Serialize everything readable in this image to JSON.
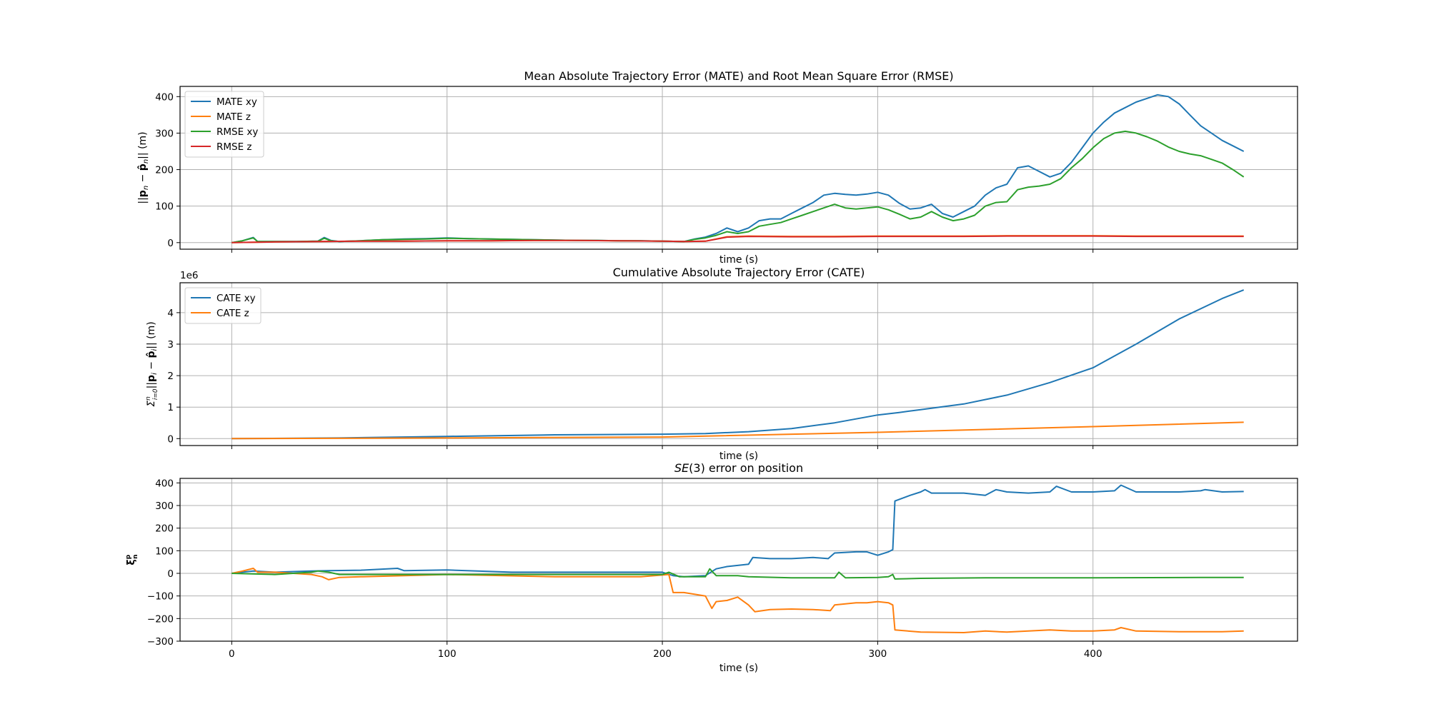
{
  "colors": {
    "blue": "#1f77b4",
    "orange": "#ff7f0e",
    "green": "#2ca02c",
    "red": "#d62728",
    "grid": "#b0b0b0"
  },
  "chart_data": [
    {
      "type": "line",
      "title": "Mean Absolute Trajectory Error (MATE) and Root Mean Square Error (RMSE)",
      "xlabel": "time (s)",
      "ylabel": "||p_n − p̂_n|| (m)",
      "xlim": [
        -24,
        495
      ],
      "ylim": [
        -18,
        428
      ],
      "xticks": [
        0,
        100,
        200,
        300,
        400
      ],
      "yticks": [
        0,
        100,
        200,
        300,
        400
      ],
      "grid": true,
      "legend": "top-left",
      "series": [
        {
          "name": "MATE xy",
          "color": "#1f77b4",
          "x": [
            0,
            5,
            10,
            12,
            20,
            30,
            40,
            43,
            46,
            50,
            60,
            70,
            80,
            90,
            100,
            110,
            120,
            130,
            140,
            150,
            160,
            170,
            180,
            190,
            200,
            210,
            215,
            220,
            225,
            230,
            235,
            240,
            245,
            250,
            255,
            260,
            265,
            270,
            275,
            280,
            285,
            290,
            295,
            300,
            305,
            310,
            315,
            320,
            325,
            330,
            335,
            340,
            345,
            350,
            355,
            360,
            365,
            370,
            375,
            380,
            385,
            390,
            395,
            400,
            405,
            410,
            415,
            420,
            425,
            430,
            435,
            440,
            445,
            450,
            455,
            460,
            465,
            470
          ],
          "y": [
            0,
            5,
            14,
            3,
            3,
            3,
            4,
            14,
            6,
            3,
            5,
            8,
            10,
            11,
            13,
            11,
            10,
            9,
            8,
            7,
            6,
            6,
            5,
            5,
            4,
            3,
            10,
            15,
            25,
            40,
            30,
            40,
            60,
            65,
            65,
            80,
            95,
            110,
            130,
            135,
            132,
            130,
            133,
            138,
            130,
            108,
            92,
            95,
            105,
            80,
            70,
            85,
            100,
            130,
            150,
            160,
            205,
            210,
            195,
            180,
            190,
            220,
            260,
            300,
            330,
            355,
            370,
            385,
            395,
            405,
            400,
            380,
            350,
            320,
            300,
            280,
            265,
            250
          ]
        },
        {
          "name": "MATE z",
          "color": "#ff7f0e",
          "x": [
            0,
            20,
            40,
            60,
            80,
            100,
            120,
            140,
            160,
            180,
            200,
            210,
            220,
            230,
            240,
            260,
            280,
            300,
            320,
            340,
            360,
            380,
            400,
            420,
            440,
            460,
            470
          ],
          "y": [
            0,
            2,
            3,
            4,
            4,
            5,
            5,
            6,
            6,
            5,
            4,
            3,
            4,
            16,
            18,
            17,
            17,
            18,
            18,
            18,
            19,
            19,
            19,
            18,
            18,
            18,
            18
          ]
        },
        {
          "name": "RMSE xy",
          "color": "#2ca02c",
          "x": [
            0,
            5,
            10,
            12,
            20,
            30,
            40,
            43,
            46,
            50,
            60,
            70,
            80,
            90,
            100,
            110,
            120,
            130,
            140,
            150,
            160,
            170,
            180,
            190,
            200,
            210,
            215,
            220,
            225,
            230,
            235,
            240,
            245,
            250,
            255,
            260,
            265,
            270,
            275,
            280,
            285,
            290,
            295,
            300,
            305,
            310,
            315,
            320,
            325,
            330,
            335,
            340,
            345,
            350,
            355,
            360,
            365,
            370,
            375,
            380,
            385,
            390,
            395,
            400,
            405,
            410,
            415,
            420,
            425,
            430,
            435,
            440,
            445,
            450,
            455,
            460,
            465,
            470
          ],
          "y": [
            0,
            5,
            13,
            3,
            3,
            3,
            4,
            12,
            5,
            3,
            5,
            8,
            9,
            10,
            12,
            11,
            10,
            9,
            8,
            7,
            6,
            6,
            5,
            5,
            4,
            3,
            9,
            13,
            20,
            30,
            25,
            30,
            45,
            50,
            55,
            65,
            75,
            85,
            95,
            105,
            95,
            92,
            95,
            98,
            90,
            78,
            65,
            70,
            85,
            70,
            60,
            65,
            75,
            100,
            110,
            112,
            145,
            152,
            155,
            160,
            175,
            205,
            230,
            260,
            285,
            300,
            305,
            300,
            290,
            278,
            262,
            250,
            243,
            238,
            228,
            218,
            200,
            180
          ]
        },
        {
          "name": "RMSE z",
          "color": "#d62728",
          "x": [
            0,
            20,
            40,
            60,
            80,
            100,
            120,
            140,
            160,
            180,
            200,
            210,
            220,
            230,
            240,
            260,
            280,
            300,
            320,
            340,
            360,
            380,
            400,
            420,
            440,
            460,
            470
          ],
          "y": [
            0,
            2,
            3,
            4,
            4,
            5,
            5,
            6,
            6,
            5,
            4,
            3,
            4,
            15,
            17,
            16,
            16,
            17,
            17,
            17,
            18,
            18,
            18,
            17,
            17,
            17,
            17
          ]
        }
      ]
    },
    {
      "type": "line",
      "title": "Cumulative Absolute Trajectory Error (CATE)",
      "xlabel": "time (s)",
      "ylabel": "Σ_{i=0}^{n} ||p_i − p̂_i|| (m)",
      "scale_label": "1e6",
      "xlim": [
        -24,
        495
      ],
      "ylim": [
        -0.22,
        4.95
      ],
      "xticks": [
        0,
        100,
        200,
        300,
        400
      ],
      "yticks": [
        0,
        1,
        2,
        3,
        4
      ],
      "grid": true,
      "legend": "top-left",
      "series": [
        {
          "name": "CATE xy",
          "color": "#1f77b4",
          "x": [
            0,
            50,
            100,
            150,
            200,
            220,
            240,
            260,
            280,
            300,
            310,
            320,
            340,
            360,
            380,
            400,
            420,
            440,
            460,
            470
          ],
          "y": [
            0,
            0.02,
            0.07,
            0.12,
            0.14,
            0.16,
            0.22,
            0.32,
            0.5,
            0.75,
            0.83,
            0.92,
            1.1,
            1.38,
            1.78,
            2.25,
            3.0,
            3.8,
            4.45,
            4.72
          ]
        },
        {
          "name": "CATE z",
          "color": "#ff7f0e",
          "x": [
            0,
            100,
            200,
            300,
            400,
            470
          ],
          "y": [
            0,
            0.02,
            0.05,
            0.2,
            0.38,
            0.52
          ]
        }
      ]
    },
    {
      "type": "line",
      "title": "SE(3) error on position",
      "xlabel": "time (s)",
      "ylabel": "ξ_n^p",
      "xlim": [
        -24,
        495
      ],
      "ylim": [
        -300,
        420
      ],
      "xticks": [
        0,
        100,
        200,
        300,
        400
      ],
      "yticks": [
        -300,
        -200,
        -100,
        0,
        100,
        200,
        300,
        400
      ],
      "grid": true,
      "series": [
        {
          "color": "#1f77b4",
          "x": [
            0,
            5,
            10,
            20,
            37,
            45,
            60,
            77,
            80,
            100,
            130,
            200,
            205,
            210,
            220,
            225,
            230,
            240,
            242,
            250,
            260,
            270,
            277,
            280,
            290,
            295,
            300,
            305,
            307,
            308,
            315,
            320,
            322,
            325,
            340,
            350,
            355,
            360,
            370,
            380,
            383,
            390,
            400,
            410,
            413,
            420,
            440,
            450,
            452,
            460,
            470
          ],
          "y": [
            0,
            5,
            10,
            5,
            10,
            12,
            14,
            22,
            12,
            15,
            5,
            5,
            -10,
            -15,
            -10,
            20,
            30,
            40,
            70,
            65,
            65,
            70,
            65,
            90,
            95,
            95,
            80,
            95,
            105,
            320,
            345,
            360,
            370,
            355,
            355,
            345,
            370,
            360,
            355,
            360,
            385,
            360,
            360,
            365,
            390,
            360,
            360,
            365,
            370,
            360,
            362
          ]
        },
        {
          "color": "#ff7f0e",
          "x": [
            0,
            5,
            10,
            12,
            20,
            37,
            42,
            45,
            50,
            60,
            80,
            100,
            150,
            190,
            203,
            205,
            210,
            220,
            223,
            225,
            230,
            235,
            240,
            243,
            250,
            260,
            270,
            278,
            280,
            290,
            295,
            300,
            305,
            307,
            308,
            320,
            340,
            350,
            360,
            370,
            380,
            390,
            400,
            410,
            413,
            420,
            440,
            460,
            470
          ],
          "y": [
            0,
            10,
            22,
            5,
            5,
            -5,
            -15,
            -28,
            -18,
            -15,
            -10,
            -5,
            -15,
            -15,
            -5,
            -85,
            -85,
            -100,
            -155,
            -125,
            -120,
            -105,
            -140,
            -170,
            -160,
            -158,
            -160,
            -165,
            -140,
            -130,
            -130,
            -125,
            -130,
            -140,
            -250,
            -260,
            -262,
            -255,
            -260,
            -255,
            -250,
            -255,
            -255,
            -250,
            -240,
            -255,
            -258,
            -258,
            -255
          ]
        },
        {
          "color": "#2ca02c",
          "x": [
            0,
            20,
            37,
            40,
            45,
            50,
            100,
            150,
            200,
            203,
            208,
            220,
            222,
            225,
            230,
            235,
            240,
            260,
            280,
            282,
            285,
            300,
            305,
            307,
            308,
            320,
            350,
            400,
            450,
            470
          ],
          "y": [
            0,
            -5,
            5,
            10,
            5,
            -5,
            -5,
            -5,
            -5,
            5,
            -15,
            -15,
            20,
            -10,
            -10,
            -10,
            -15,
            -20,
            -20,
            5,
            -20,
            -18,
            -15,
            -5,
            -25,
            -22,
            -20,
            -20,
            -18,
            -18
          ]
        }
      ]
    }
  ]
}
